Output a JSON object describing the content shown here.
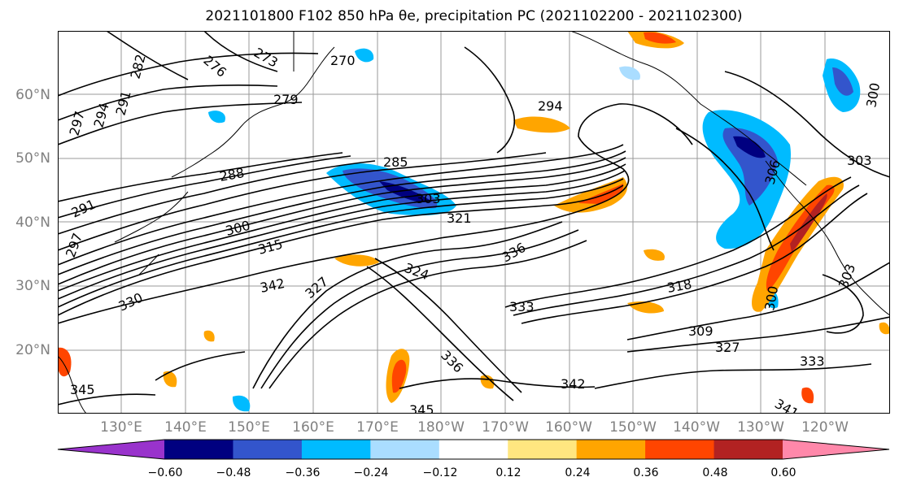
{
  "title": "2021101800 F102 850 hPa θe, precipitation PC (2021102200 - 2021102300)",
  "map": {
    "lat_labels": [
      "60°N",
      "50°N",
      "40°N",
      "30°N",
      "20°N"
    ],
    "lon_labels": [
      "130°E",
      "140°E",
      "150°E",
      "160°E",
      "170°E",
      "180°W",
      "170°W",
      "160°W",
      "150°W",
      "140°W",
      "130°W",
      "120°W"
    ],
    "contour_labels": [
      "282",
      "276",
      "273",
      "270",
      "279",
      "294",
      "297",
      "294",
      "291",
      "285",
      "288",
      "303",
      "321",
      "291",
      "300",
      "315",
      "297",
      "336",
      "324",
      "342",
      "330",
      "327",
      "318",
      "333",
      "309",
      "306",
      "327",
      "333",
      "336",
      "342",
      "345",
      "345",
      "300",
      "303",
      "300",
      "341",
      "303"
    ]
  },
  "colorbar": {
    "colors": [
      "#9933cc",
      "#000080",
      "#3355cc",
      "#00bbff",
      "#aaddff",
      "#ffffff",
      "#ffe680",
      "#ffa500",
      "#ff4500",
      "#b22222",
      "#ff88aa"
    ],
    "tick_labels": [
      "−0.60",
      "−0.48",
      "−0.36",
      "−0.24",
      "−0.12",
      "0.12",
      "0.24",
      "0.36",
      "0.48",
      "0.60"
    ]
  }
}
